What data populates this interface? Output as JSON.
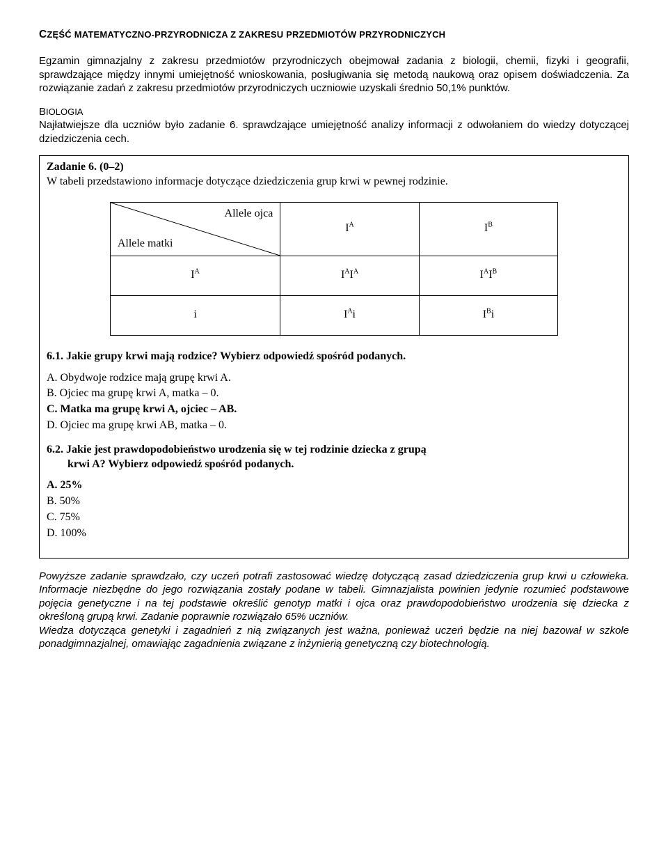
{
  "header": {
    "title_pt1": "C",
    "title_pt2": "ZĘŚĆ MATEMATYCZNO-PRZYRODNICZA Z ZAKRESU PRZEDMIOTÓW PRZYRODNICZYCH"
  },
  "intro": "Egzamin gimnazjalny z zakresu przedmiotów przyrodniczych obejmował zadania z biologii, chemii, fizyki i geografii, sprawdzające między innymi umiejętność wnioskowania, posługiwania się metodą naukową oraz opisem doświadczenia. Za rozwiązanie zadań z zakresu przedmiotów przyrodniczych uczniowie uzyskali średnio 50,1% punktów.",
  "section": {
    "caps": "B",
    "rest": "IOLOGIA",
    "text": "Najłatwiejsze dla uczniów było zadanie 6. sprawdzające umiejętność analizy informacji z odwołaniem do wiedzy dotyczącej dziedziczenia cech."
  },
  "task": {
    "title": "Zadanie 6. (0–2)",
    "lead": "W tabeli przedstawiono informacje dotyczące dziedziczenia grup krwi w pewnej rodzinie.",
    "table": {
      "diag_top": "Allele ojca",
      "diag_bottom": "Allele matki",
      "col1": "I<sup>A</sup>",
      "col2": "I<sup>B</sup>",
      "r1c0": "I<sup>A</sup>",
      "r1c1": "I<sup>A</sup>I<sup>A</sup>",
      "r1c2": "I<sup>A</sup>I<sup>B</sup>",
      "r2c0": "i",
      "r2c1": "I<sup>A</sup>i",
      "r2c2": "I<sup>B</sup>i"
    },
    "q61": "6.1. Jakie grupy krwi mają rodzice? Wybierz odpowiedź spośród podanych.",
    "opts61": {
      "a": "A.  Obydwoje rodzice mają grupę krwi A.",
      "b": "B.  Ojciec ma grupę krwi A, matka – 0.",
      "c": "C.  Matka ma grupę krwi A, ojciec – AB.",
      "d": "D.  Ojciec ma grupę krwi AB, matka – 0."
    },
    "q62_line1": "6.2. Jakie jest prawdopodobieństwo urodzenia się w tej rodzinie dziecka z grupą",
    "q62_line2": "krwi A? Wybierz odpowiedź spośród podanych.",
    "opts62": {
      "a": "A. 25%",
      "b": "B. 50%",
      "c": "C. 75%",
      "d": "D. 100%"
    }
  },
  "bottom": "Powyższe zadanie sprawdzało, czy uczeń potrafi zastosować wiedzę dotyczącą zasad dziedziczenia grup krwi u człowieka. Informacje niezbędne do jego rozwiązania zostały podane w tabeli. Gimnazjalista powinien jedynie rozumieć podstawowe pojęcia genetyczne i na tej podstawie określić genotyp matki i ojca oraz prawdopodobieństwo urodzenia się dziecka z określoną grupą krwi. Zadanie poprawnie rozwiązało 65% uczniów.\nWiedza dotycząca genetyki i zagadnień z nią związanych jest ważna, ponieważ uczeń będzie na niej bazował w szkole ponadgimnazjalnej, omawiając zagadnienia związane z inżynierią genetyczną czy biotechnologią."
}
